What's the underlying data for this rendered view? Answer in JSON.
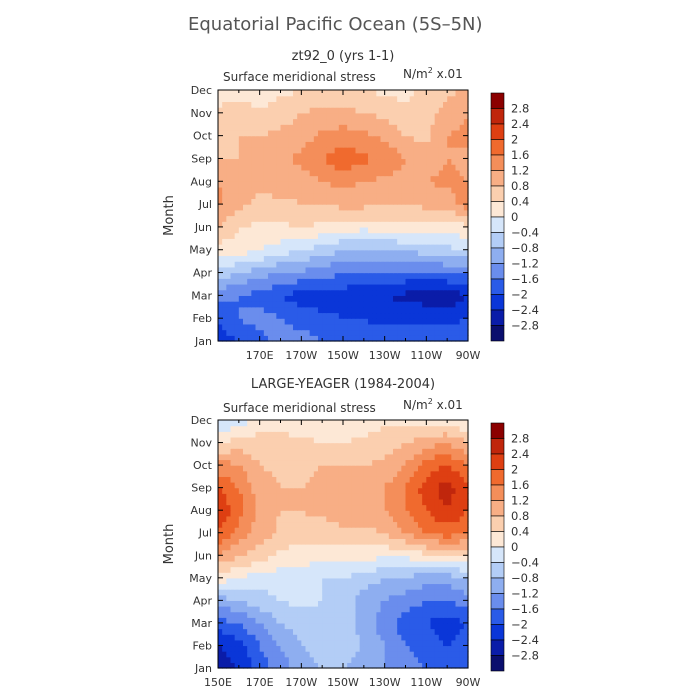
{
  "figure": {
    "title": "Equatorial Pacific Ocean (5S–5N)"
  },
  "chart_data": [
    {
      "type": "heatmap",
      "title": "zt92_0 (yrs 1-1)",
      "subtitle": "Surface meridional stress",
      "units": "N/m² x.01",
      "ylabel": "Month",
      "xlabel": "",
      "months": [
        "Jan",
        "Feb",
        "Mar",
        "Apr",
        "May",
        "Jun",
        "Jul",
        "Aug",
        "Sep",
        "Oct",
        "Nov",
        "Dec"
      ],
      "x_ticks": [
        "",
        "170E",
        "170W",
        "150W",
        "130W",
        "110W",
        "90W"
      ],
      "x_tick_degE": [
        150,
        170,
        190,
        210,
        230,
        250,
        270
      ],
      "x_range_degE": [
        150,
        270
      ],
      "columns_degE": [
        150,
        160,
        170,
        180,
        190,
        200,
        210,
        220,
        230,
        240,
        250,
        260,
        270
      ],
      "values": [
        [
          -2.2,
          -2.0,
          -1.8,
          -1.4,
          -1.4,
          -1.6,
          -1.6,
          -1.8,
          -1.8,
          -1.8,
          -1.8,
          -1.8,
          -1.6
        ],
        [
          -2.0,
          -1.6,
          -1.4,
          -1.6,
          -1.8,
          -1.9,
          -2.0,
          -2.0,
          -2.1,
          -2.1,
          -2.1,
          -2.1,
          -2.0
        ],
        [
          -1.4,
          -1.6,
          -1.8,
          -2.0,
          -2.2,
          -2.2,
          -2.2,
          -2.3,
          -2.4,
          -2.5,
          -2.6,
          -2.7,
          -2.4
        ],
        [
          -0.6,
          -0.8,
          -1.0,
          -1.2,
          -1.3,
          -1.4,
          -1.6,
          -1.7,
          -1.7,
          -1.7,
          -1.7,
          -1.6,
          -1.5
        ],
        [
          0.2,
          0.2,
          0.0,
          -0.2,
          -0.4,
          -0.6,
          -0.8,
          -0.9,
          -0.8,
          -0.8,
          -0.6,
          -0.5,
          -0.4
        ],
        [
          0.8,
          0.4,
          0.3,
          0.3,
          0.4,
          0.3,
          0.2,
          0.1,
          0.2,
          0.3,
          0.2,
          0.2,
          0.3
        ],
        [
          1.3,
          0.9,
          0.7,
          0.7,
          0.8,
          0.8,
          0.9,
          0.9,
          0.8,
          0.8,
          0.9,
          1.0,
          1.4
        ],
        [
          1.2,
          0.9,
          0.9,
          1.0,
          1.0,
          1.2,
          1.3,
          1.2,
          1.1,
          1.1,
          1.2,
          1.3,
          1.2
        ],
        [
          0.8,
          0.8,
          0.9,
          1.1,
          1.3,
          1.6,
          1.9,
          1.7,
          1.5,
          1.2,
          1.0,
          1.2,
          1.1
        ],
        [
          0.6,
          0.8,
          0.8,
          0.9,
          1.0,
          1.3,
          1.4,
          1.3,
          1.1,
          0.8,
          0.7,
          1.2,
          1.3
        ],
        [
          0.5,
          0.6,
          0.4,
          0.6,
          0.8,
          0.9,
          0.9,
          0.8,
          0.7,
          0.5,
          0.6,
          1.0,
          1.2
        ],
        [
          0.2,
          0.2,
          0.3,
          0.3,
          0.4,
          0.5,
          0.5,
          0.4,
          0.3,
          0.3,
          0.5,
          0.7,
          0.9
        ]
      ],
      "levels": [
        -2.8,
        -2.4,
        -2.0,
        -1.6,
        -1.2,
        -0.8,
        -0.4,
        0,
        0.4,
        0.8,
        1.2,
        1.6,
        2.0,
        2.4,
        2.8
      ]
    },
    {
      "type": "heatmap",
      "title": "LARGE-YEAGER (1984-2004)",
      "subtitle": "Surface meridional stress",
      "units": "N/m² x.01",
      "ylabel": "Month",
      "xlabel": "",
      "months": [
        "Jan",
        "Feb",
        "Mar",
        "Apr",
        "May",
        "Jun",
        "Jul",
        "Aug",
        "Sep",
        "Oct",
        "Nov",
        "Dec"
      ],
      "x_ticks": [
        "150E",
        "170E",
        "170W",
        "150W",
        "130W",
        "110W",
        "90W"
      ],
      "x_tick_degE": [
        150,
        170,
        190,
        210,
        230,
        250,
        270
      ],
      "x_range_degE": [
        150,
        270
      ],
      "columns_degE": [
        150,
        160,
        170,
        180,
        190,
        200,
        210,
        220,
        230,
        240,
        250,
        260,
        270
      ],
      "values": [
        [
          -2.6,
          -2.4,
          -1.8,
          -1.4,
          -1.0,
          -0.8,
          -0.8,
          -1.0,
          -1.2,
          -1.4,
          -1.6,
          -1.8,
          -1.6
        ],
        [
          -2.4,
          -2.2,
          -1.6,
          -1.2,
          -0.8,
          -0.6,
          -0.6,
          -0.8,
          -1.2,
          -1.6,
          -1.8,
          -2.0,
          -1.8
        ],
        [
          -1.8,
          -1.6,
          -1.2,
          -0.8,
          -0.6,
          -0.5,
          -0.6,
          -1.0,
          -1.4,
          -1.8,
          -2.0,
          -2.2,
          -2.0
        ],
        [
          -1.0,
          -0.8,
          -0.6,
          -0.4,
          -0.3,
          -0.4,
          -0.6,
          -1.0,
          -1.2,
          -1.4,
          -1.6,
          -1.6,
          -1.4
        ],
        [
          0.2,
          0.0,
          -0.2,
          -0.2,
          -0.3,
          -0.4,
          -0.4,
          -0.6,
          -0.8,
          -0.9,
          -1.0,
          -1.0,
          -0.8
        ],
        [
          1.2,
          0.8,
          0.6,
          0.3,
          0.2,
          0.2,
          0.2,
          0.1,
          0.1,
          0.1,
          0.3,
          0.4,
          0.4
        ],
        [
          2.0,
          1.4,
          1.0,
          0.7,
          0.6,
          0.6,
          0.7,
          0.7,
          0.8,
          1.2,
          1.6,
          1.8,
          1.6
        ],
        [
          2.4,
          1.8,
          1.1,
          0.8,
          0.8,
          0.9,
          1.0,
          1.1,
          1.2,
          1.6,
          2.0,
          2.4,
          2.0
        ],
        [
          2.0,
          1.6,
          1.0,
          0.8,
          0.8,
          0.9,
          1.0,
          1.0,
          1.2,
          1.6,
          2.2,
          2.6,
          2.1
        ],
        [
          1.4,
          1.2,
          0.8,
          0.7,
          0.7,
          0.8,
          0.8,
          0.8,
          0.9,
          1.2,
          1.8,
          2.0,
          1.6
        ],
        [
          0.4,
          0.6,
          0.6,
          0.6,
          0.5,
          0.4,
          0.4,
          0.5,
          0.6,
          0.8,
          1.0,
          1.2,
          0.8
        ],
        [
          -0.5,
          -0.2,
          0.1,
          0.2,
          0.1,
          0.0,
          0.0,
          0.2,
          0.3,
          0.3,
          0.2,
          0.2,
          0.0
        ]
      ],
      "levels": [
        -2.8,
        -2.4,
        -2.0,
        -1.6,
        -1.2,
        -0.8,
        -0.4,
        0,
        0.4,
        0.8,
        1.2,
        1.6,
        2.0,
        2.4,
        2.8
      ]
    }
  ],
  "colorbar": {
    "labels": [
      "2.8",
      "2.4",
      "2",
      "1.6",
      "1.2",
      "0.8",
      "0.4",
      "0",
      "−0.4",
      "−0.8",
      "−1.2",
      "−1.6",
      "−2",
      "−2.4",
      "−2.8"
    ],
    "colors_top_to_bottom": [
      "#8b0000",
      "#c0260c",
      "#de3f12",
      "#f06a2e",
      "#f48e5a",
      "#f8ae85",
      "#fbcfaf",
      "#fde8d6",
      "#d6e6fa",
      "#b3cdf6",
      "#8eaef0",
      "#6a8ded",
      "#2a5be8",
      "#0a36d8",
      "#0a1ca8",
      "#0a0e6e"
    ]
  }
}
